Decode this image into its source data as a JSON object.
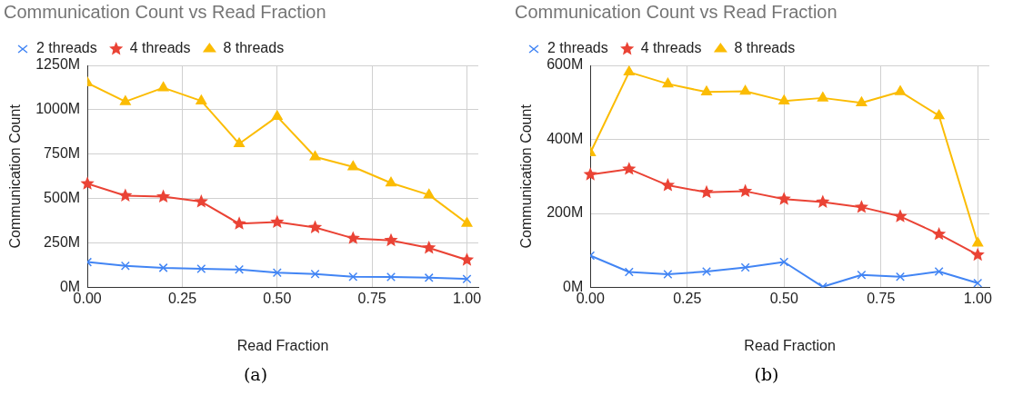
{
  "chart_data": [
    {
      "type": "line",
      "title": "Communication Count vs Read Fraction",
      "xlabel": "Read Fraction",
      "ylabel": "Communication Count",
      "x": [
        0,
        0.1,
        0.2,
        0.3,
        0.4,
        0.5,
        0.6,
        0.7,
        0.8,
        0.9,
        1.0
      ],
      "series": [
        {
          "name": "2 threads",
          "color": "#4285f4",
          "marker": "cross",
          "values": [
            143,
            122,
            111,
            105,
            101,
            84,
            76,
            61,
            59,
            55,
            48
          ]
        },
        {
          "name": "4 threads",
          "color": "#ea4335",
          "marker": "star",
          "values": [
            584,
            517,
            511,
            483,
            359,
            368,
            338,
            277,
            265,
            223,
            155
          ]
        },
        {
          "name": "8 threads",
          "color": "#fbbc04",
          "marker": "triangle",
          "values": [
            1151,
            1046,
            1124,
            1050,
            809,
            962,
            735,
            679,
            588,
            521,
            361
          ]
        }
      ],
      "xlim": [
        0,
        1.03
      ],
      "xticks": [
        {
          "value": 0,
          "label": "0.00"
        },
        {
          "value": 0.25,
          "label": "0.25"
        },
        {
          "value": 0.5,
          "label": "0.50"
        },
        {
          "value": 0.75,
          "label": "0.75"
        },
        {
          "value": 1,
          "label": "1.00"
        }
      ],
      "ylim": [
        0,
        1250
      ],
      "yticks": [
        {
          "value": 0,
          "label": "0M"
        },
        {
          "value": 250,
          "label": "250M"
        },
        {
          "value": 500,
          "label": "500M"
        },
        {
          "value": 750,
          "label": "750M"
        },
        {
          "value": 1000,
          "label": "1000M"
        },
        {
          "value": 1250,
          "label": "1250M"
        }
      ],
      "grid": true,
      "legend": "top",
      "annotations": [
        "(a)"
      ]
    },
    {
      "type": "line",
      "title": "Communication Count vs Read Fraction",
      "xlabel": "Read Fraction",
      "ylabel": "Communication Count",
      "x": [
        0,
        0.1,
        0.2,
        0.3,
        0.4,
        0.5,
        0.6,
        0.7,
        0.8,
        0.9,
        1.0
      ],
      "series": [
        {
          "name": "2 threads",
          "color": "#4285f4",
          "marker": "cross",
          "values": [
            86,
            42,
            36,
            43,
            54,
            69,
            2,
            34,
            29,
            43,
            12
          ]
        },
        {
          "name": "4 threads",
          "color": "#ea4335",
          "marker": "star",
          "values": [
            305,
            320,
            276,
            257,
            260,
            239,
            231,
            217,
            192,
            144,
            88
          ]
        },
        {
          "name": "8 threads",
          "color": "#fbbc04",
          "marker": "triangle",
          "values": [
            364,
            582,
            550,
            528,
            530,
            504,
            512,
            499,
            529,
            464,
            120
          ]
        }
      ],
      "xlim": [
        0,
        1.03
      ],
      "xticks": [
        {
          "value": 0,
          "label": "0.00"
        },
        {
          "value": 0.25,
          "label": "0.25"
        },
        {
          "value": 0.5,
          "label": "0.50"
        },
        {
          "value": 0.75,
          "label": "0.75"
        },
        {
          "value": 1,
          "label": "1.00"
        }
      ],
      "ylim": [
        0,
        600
      ],
      "yticks": [
        {
          "value": 0,
          "label": "0M"
        },
        {
          "value": 200,
          "label": "200M"
        },
        {
          "value": 400,
          "label": "400M"
        },
        {
          "value": 600,
          "label": "600M"
        }
      ],
      "grid": true,
      "legend": "top",
      "annotations": [
        "(b)"
      ]
    }
  ]
}
